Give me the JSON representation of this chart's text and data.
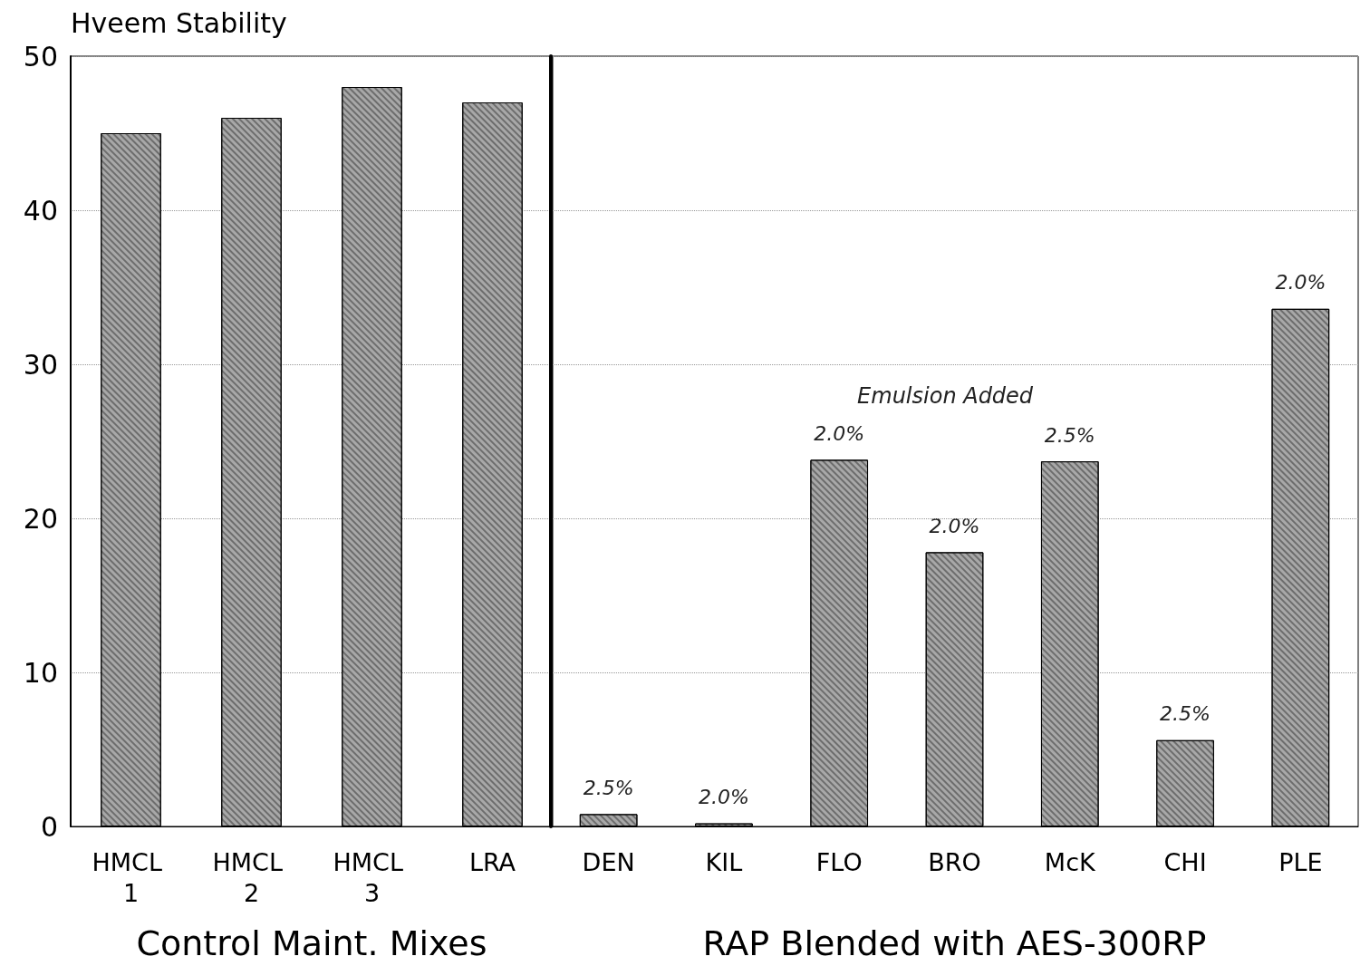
{
  "chart_data": [
    {
      "type": "bar",
      "ylabel": "Hveem Stability",
      "xlabel": "Control Maint. Mixes",
      "categories": [
        "HMCL 1",
        "HMCL 2",
        "HMCL 3",
        "LRA"
      ],
      "values": [
        45,
        46,
        48,
        47
      ],
      "color": "#a8a8a8",
      "ylim": [
        0,
        50
      ],
      "yticks": [
        0,
        10,
        20,
        30,
        40,
        50
      ],
      "grid": "y"
    },
    {
      "type": "bar",
      "xlabel": "RAP Blended with AES-300RP",
      "categories": [
        "DEN",
        "KIL",
        "FLO",
        "BRO",
        "McK",
        "CHI",
        "PLE"
      ],
      "values": [
        0.8,
        0.2,
        23.8,
        17.8,
        23.7,
        5.6,
        33.6
      ],
      "color": "#a8a8a8",
      "annotations": [
        "Emulsion Added",
        {
          "text": "2.5%",
          "x": "DEN",
          "y": 0.8
        },
        {
          "text": "2.0%",
          "x": "KIL",
          "y": 0.2
        },
        {
          "text": "2.0%",
          "x": "FLO",
          "y": 23.8
        },
        {
          "text": "2.0%",
          "x": "BRO",
          "y": 17.8
        },
        {
          "text": "2.5%",
          "x": "McK",
          "y": 23.7
        },
        {
          "text": "2.5%",
          "x": "CHI",
          "y": 5.6
        },
        {
          "text": "2.0%",
          "x": "PLE",
          "y": 33.6
        }
      ],
      "ylim": [
        0,
        50
      ],
      "yticks": [
        0,
        10,
        20,
        30,
        40,
        50
      ],
      "grid": "y",
      "tick_labels": "x"
    }
  ]
}
